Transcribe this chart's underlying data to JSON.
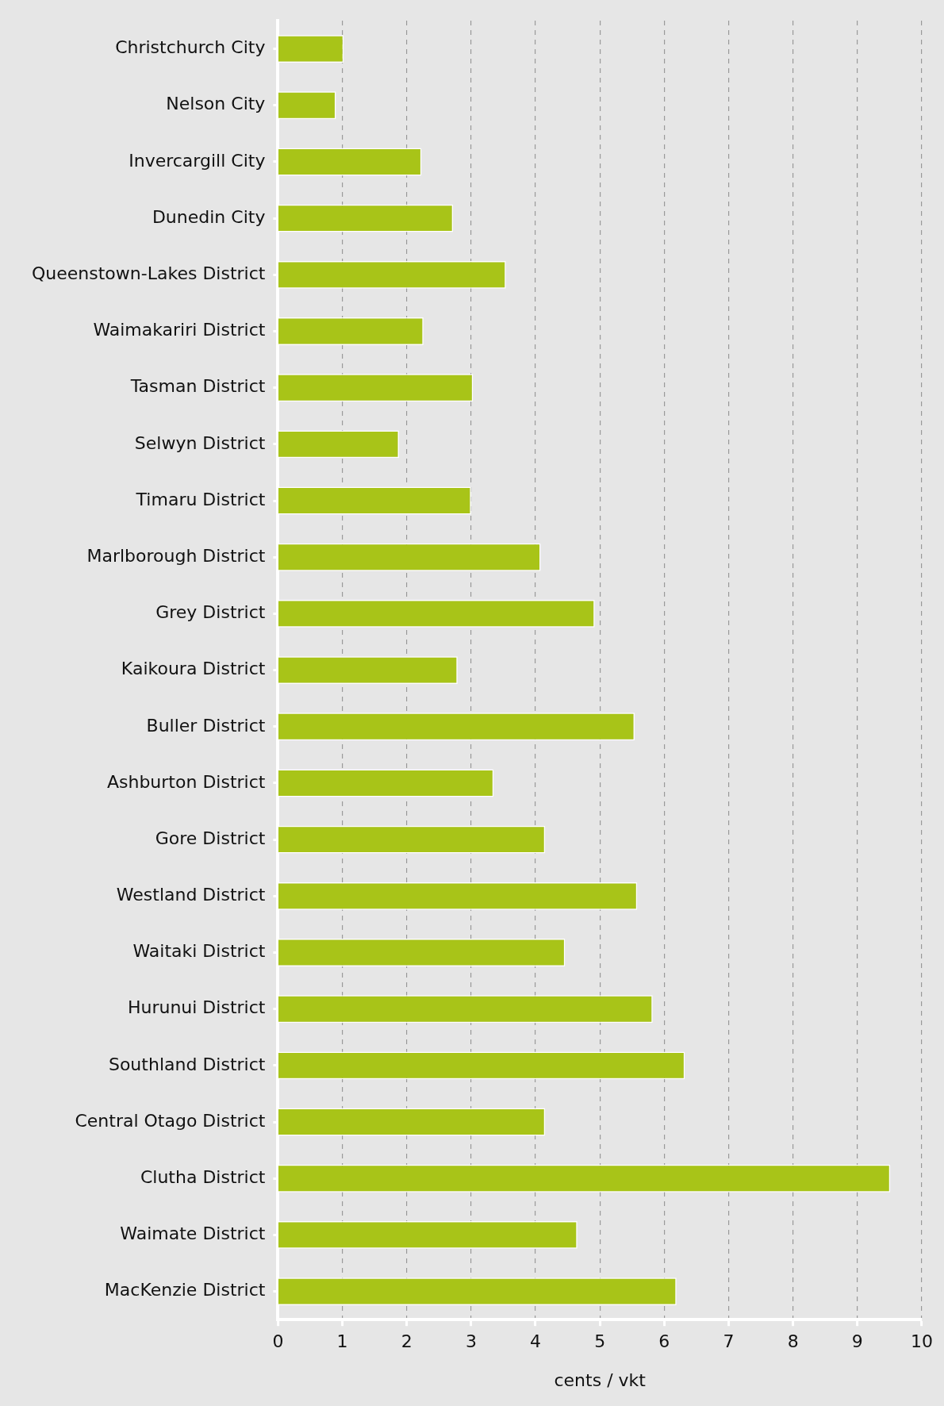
{
  "chart_data": {
    "type": "bar",
    "orientation": "horizontal",
    "xlabel": "cents / vkt",
    "categories": [
      "Christchurch City",
      "Nelson City",
      "Invercargill City",
      "Dunedin City",
      "Queenstown-Lakes District",
      "Waimakariri District",
      "Tasman District",
      "Selwyn District",
      "Timaru District",
      "Marlborough District",
      "Grey District",
      "Kaikoura District",
      "Buller District",
      "Ashburton District",
      "Gore District",
      "Westland District",
      "Waitaki District",
      "Hurunui District",
      "Southland District",
      "Central Otago District",
      "Clutha District",
      "Waimate District",
      "MacKenzie District"
    ],
    "values": [
      1.02,
      0.9,
      2.23,
      2.72,
      3.54,
      2.26,
      3.03,
      1.88,
      3.0,
      4.08,
      4.92,
      2.79,
      5.54,
      3.35,
      4.15,
      5.58,
      4.46,
      5.82,
      6.32,
      4.15,
      9.51,
      4.65,
      6.19
    ],
    "color": "#a8c418",
    "xlim": [
      0,
      10
    ],
    "xticks": [
      0,
      1,
      2,
      3,
      4,
      5,
      6,
      7,
      8,
      9,
      10
    ],
    "grid": "x",
    "legend": false
  }
}
